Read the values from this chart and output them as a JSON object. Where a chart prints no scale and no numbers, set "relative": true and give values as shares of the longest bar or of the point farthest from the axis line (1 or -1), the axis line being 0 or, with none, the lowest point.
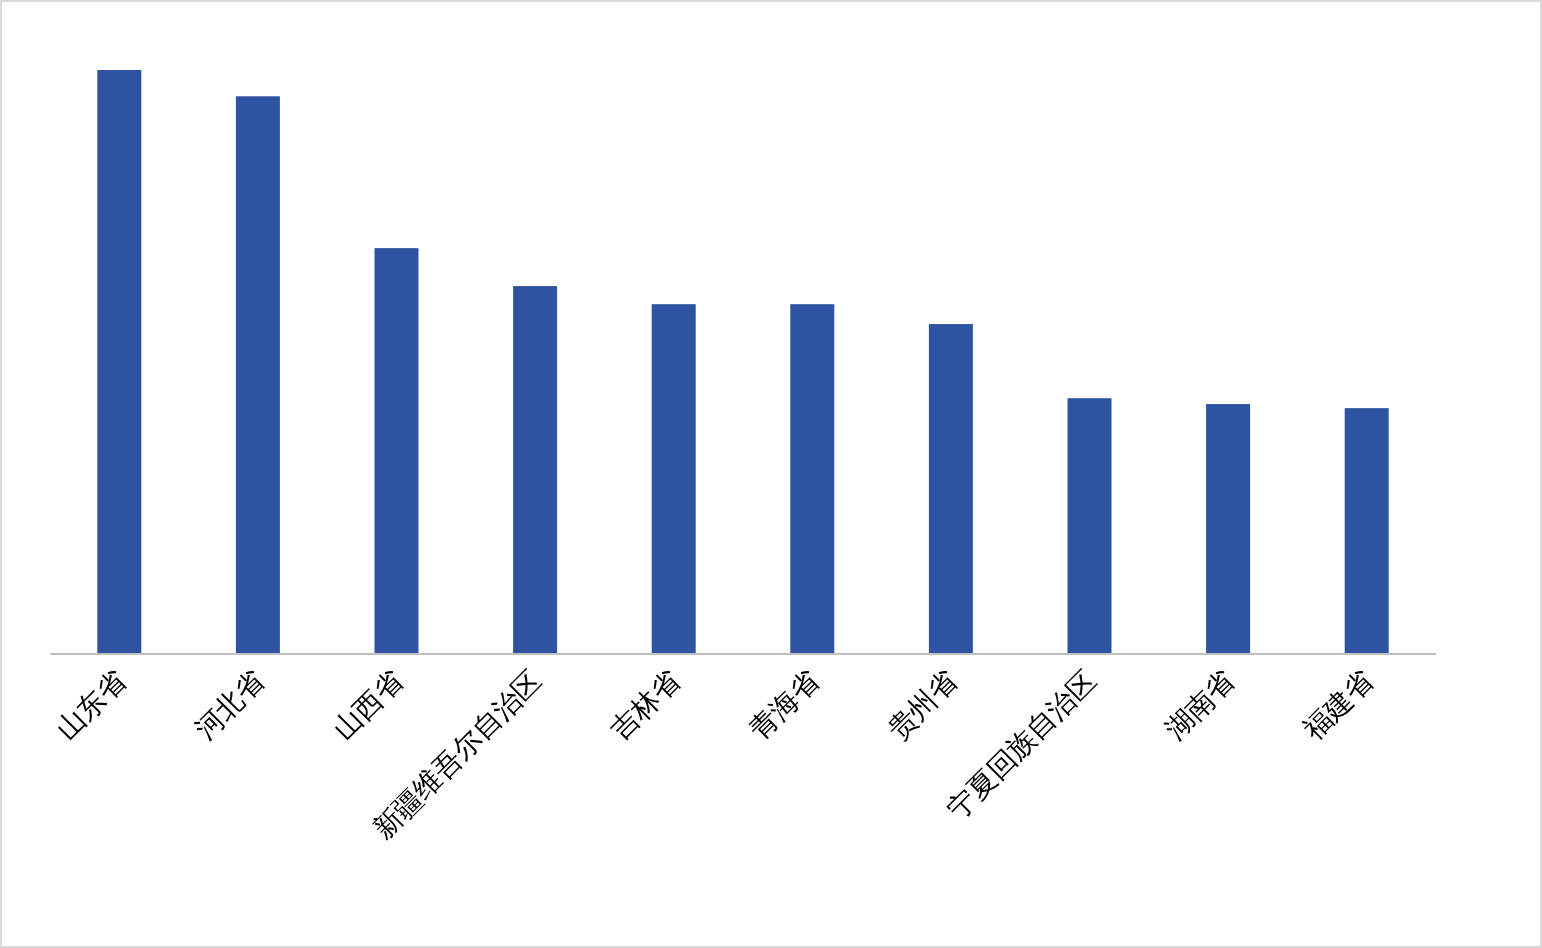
{
  "chart_data": {
    "type": "bar",
    "relative": true,
    "color": "#2e54a1",
    "categories": [
      "山东省",
      "河北省",
      "山西省",
      "新疆维吾尔自治区",
      "吉林省",
      "青海省",
      "贵州省",
      "宁夏回族自治区",
      "湖南省",
      "福建省"
    ],
    "values": [
      1,
      0.955,
      0.695,
      0.63,
      0.599,
      0.599,
      0.565,
      0.438,
      0.428,
      0.421
    ]
  }
}
